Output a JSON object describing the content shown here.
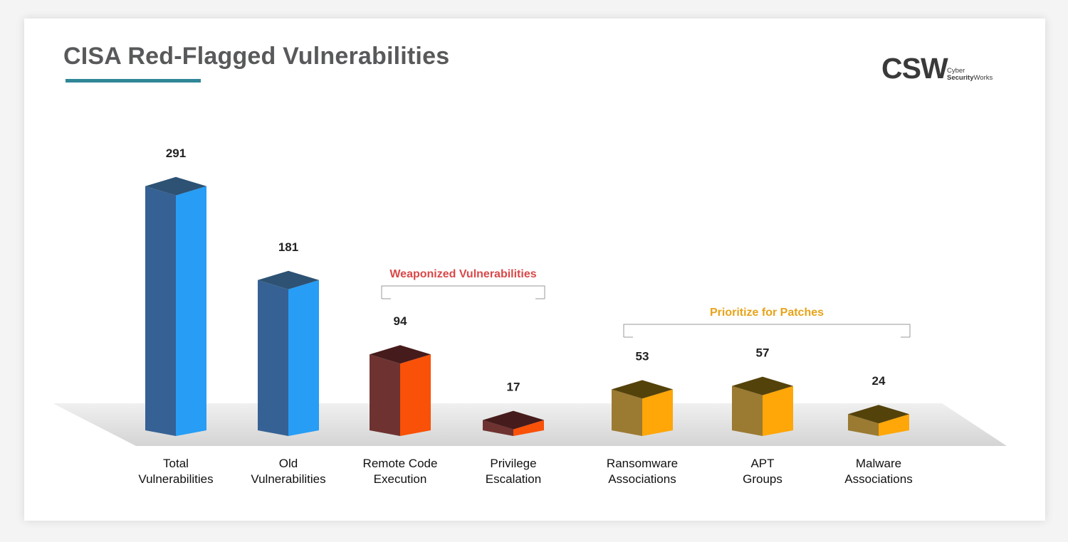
{
  "header": {
    "title": "CISA Red-Flagged Vulnerabilities"
  },
  "logo": {
    "mark": "CSW",
    "line1": "Cyber",
    "line2_bold": "Security",
    "line2_rest": "Works"
  },
  "chart_data": {
    "type": "bar",
    "style": "3d-columns",
    "title": "CISA Red-Flagged Vulnerabilities",
    "categories": [
      [
        "Total",
        "Vulnerabilities"
      ],
      [
        "Old",
        "Vulnerabilities"
      ],
      [
        "Remote Code",
        "Execution"
      ],
      [
        "Privilege",
        "Escalation"
      ],
      [
        "Ransomware",
        "Associations"
      ],
      [
        "APT",
        "Groups"
      ],
      [
        "Malware",
        "Associations"
      ]
    ],
    "values": [
      291,
      181,
      94,
      17,
      53,
      57,
      24
    ],
    "data_labels": [
      "291",
      "181",
      "94",
      "17",
      "53",
      "57",
      "24"
    ],
    "colors": [
      {
        "front": "#366194",
        "side": "#279df5",
        "top": "#2d5274"
      },
      {
        "front": "#366194",
        "side": "#279df5",
        "top": "#2d5274"
      },
      {
        "front": "#6e3331",
        "side": "#f95108",
        "top": "#461b1b"
      },
      {
        "front": "#6e3331",
        "side": "#f95108",
        "top": "#461b1b"
      },
      {
        "front": "#9b7a32",
        "side": "#ffa608",
        "top": "#54420b"
      },
      {
        "front": "#9b7a32",
        "side": "#ffa608",
        "top": "#54420b"
      },
      {
        "front": "#9b7a32",
        "side": "#ffa608",
        "top": "#54420b"
      }
    ],
    "groups": [
      {
        "label": "Weaponized Vulnerabilities",
        "color": "#d94848",
        "members": [
          2,
          3
        ]
      },
      {
        "label": "Prioritize for Patches",
        "color": "#e7a319",
        "members": [
          4,
          5,
          6
        ]
      }
    ],
    "grid": false,
    "legend": "none"
  }
}
